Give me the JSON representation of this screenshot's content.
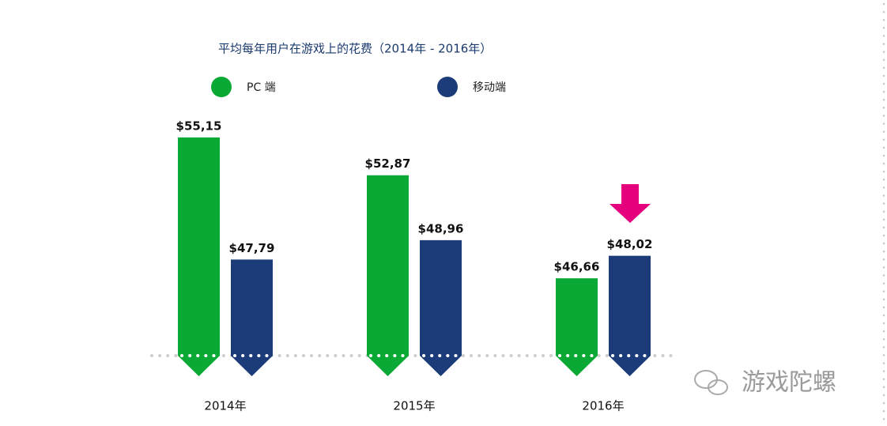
{
  "chart_data": {
    "type": "bar",
    "title": "平均每年用户在游戏上的花费（2014年 - 2016年）",
    "categories": [
      "2014年",
      "2015年",
      "2016年"
    ],
    "series": [
      {
        "name": "PC 端",
        "color": "#0aa834",
        "values": [
          55.15,
          52.87,
          46.66
        ],
        "value_labels": [
          "$55,15",
          "$52,87",
          "$46,66"
        ]
      },
      {
        "name": "移动端",
        "color": "#1b3c78",
        "values": [
          47.79,
          48.96,
          48.02
        ],
        "value_labels": [
          "$47,79",
          "$48,96",
          "$48,02"
        ]
      }
    ],
    "ylim": [
      42,
      56
    ],
    "watermark": "游戏陀螺"
  }
}
